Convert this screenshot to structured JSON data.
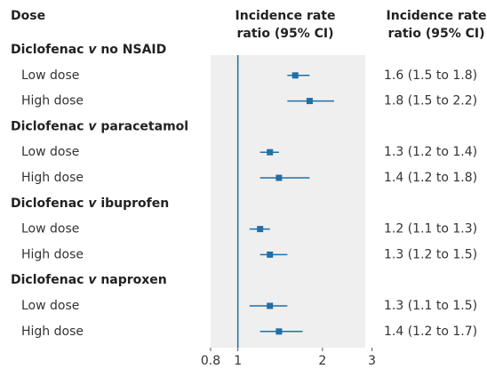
{
  "chart_data": {
    "type": "forest",
    "row_header": "Dose",
    "plot_header": [
      "Incidence rate",
      "ratio (95% CI)"
    ],
    "ci_header": [
      "Incidence rate",
      "ratio (95% CI)"
    ],
    "color": "#1f6fa8",
    "xscale": "log",
    "xlim": [
      0.8,
      3
    ],
    "xticks": [
      0.8,
      1,
      2,
      3
    ],
    "ref_line": 1,
    "groups": [
      {
        "name": [
          "Diclofenac",
          "v",
          "no NSAID"
        ],
        "rows": [
          {
            "label": "Low dose",
            "estimate": 1.6,
            "lower": 1.5,
            "upper": 1.8,
            "ci_label": "1.6 (1.5 to 1.8)"
          },
          {
            "label": "High dose",
            "estimate": 1.8,
            "lower": 1.5,
            "upper": 2.2,
            "ci_label": "1.8 (1.5 to 2.2)"
          }
        ]
      },
      {
        "name": [
          "Diclofenac",
          "v",
          "paracetamol"
        ],
        "rows": [
          {
            "label": "Low dose",
            "estimate": 1.3,
            "lower": 1.2,
            "upper": 1.4,
            "ci_label": "1.3 (1.2 to 1.4)"
          },
          {
            "label": "High dose",
            "estimate": 1.4,
            "lower": 1.2,
            "upper": 1.8,
            "ci_label": "1.4 (1.2 to 1.8)"
          }
        ]
      },
      {
        "name": [
          "Diclofenac",
          "v",
          "ibuprofen"
        ],
        "rows": [
          {
            "label": "Low dose",
            "estimate": 1.2,
            "lower": 1.1,
            "upper": 1.3,
            "ci_label": "1.2 (1.1 to 1.3)"
          },
          {
            "label": "High dose",
            "estimate": 1.3,
            "lower": 1.2,
            "upper": 1.5,
            "ci_label": "1.3 (1.2 to 1.5)"
          }
        ]
      },
      {
        "name": [
          "Diclofenac",
          "v",
          "naproxen"
        ],
        "rows": [
          {
            "label": "Low dose",
            "estimate": 1.3,
            "lower": 1.1,
            "upper": 1.5,
            "ci_label": "1.3 (1.1 to 1.5)"
          },
          {
            "label": "High dose",
            "estimate": 1.4,
            "lower": 1.2,
            "upper": 1.7,
            "ci_label": "1.4 (1.2 to 1.7)"
          }
        ]
      }
    ]
  }
}
